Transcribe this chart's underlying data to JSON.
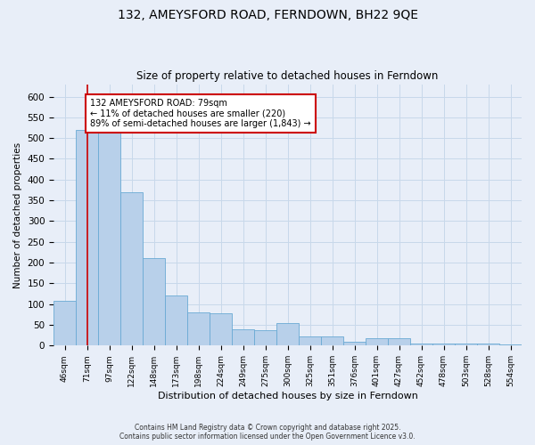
{
  "title": "132, AMEYSFORD ROAD, FERNDOWN, BH22 9QE",
  "subtitle": "Size of property relative to detached houses in Ferndown",
  "xlabel": "Distribution of detached houses by size in Ferndown",
  "ylabel": "Number of detached properties",
  "footer_line1": "Contains HM Land Registry data © Crown copyright and database right 2025.",
  "footer_line2": "Contains public sector information licensed under the Open Government Licence v3.0.",
  "categories": [
    "46sqm",
    "71sqm",
    "97sqm",
    "122sqm",
    "148sqm",
    "173sqm",
    "198sqm",
    "224sqm",
    "249sqm",
    "275sqm",
    "300sqm",
    "325sqm",
    "351sqm",
    "376sqm",
    "401sqm",
    "427sqm",
    "452sqm",
    "478sqm",
    "503sqm",
    "528sqm",
    "554sqm"
  ],
  "values": [
    107,
    520,
    520,
    370,
    210,
    120,
    80,
    78,
    40,
    38,
    55,
    23,
    22,
    10,
    18,
    18,
    4,
    4,
    4,
    4,
    2
  ],
  "bar_color": "#b8d0ea",
  "bar_edge_color": "#6aaad4",
  "property_line_x": 1.0,
  "property_line_color": "#cc0000",
  "annotation_text": "132 AMEYSFORD ROAD: 79sqm\n← 11% of detached houses are smaller (220)\n89% of semi-detached houses are larger (1,843) →",
  "annotation_box_color": "#cc0000",
  "annotation_bg_color": "#ffffff",
  "grid_color": "#c8d8ea",
  "background_color": "#e8eef8",
  "ylim": [
    0,
    630
  ],
  "yticks": [
    0,
    50,
    100,
    150,
    200,
    250,
    300,
    350,
    400,
    450,
    500,
    550,
    600
  ]
}
